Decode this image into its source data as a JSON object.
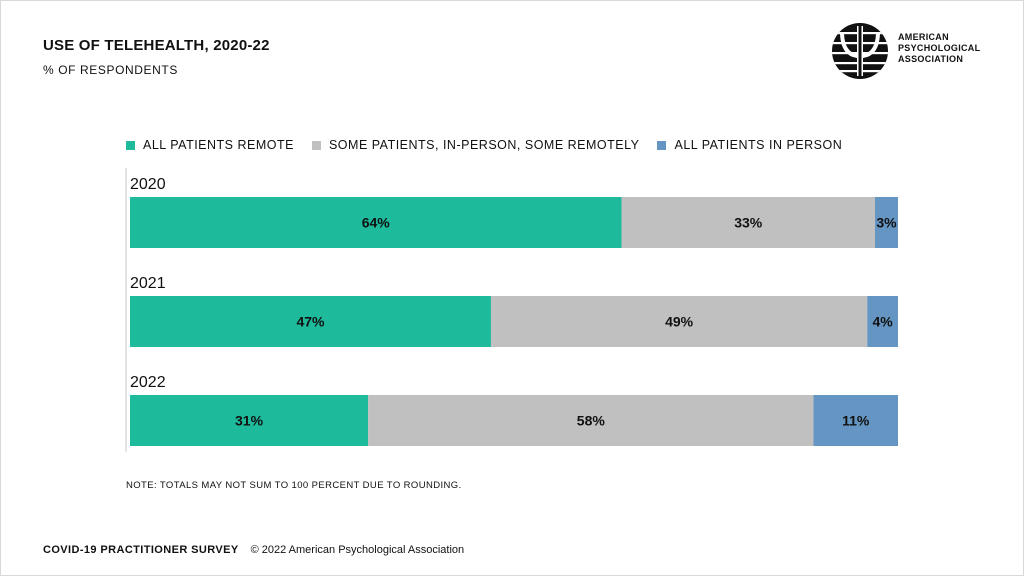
{
  "header": {
    "title": "USE OF TELEHEALTH, 2020-22",
    "subtitle": "% OF RESPONDENTS"
  },
  "logo": {
    "icon": "apa-psi-logo-icon",
    "lines": [
      "AMERICAN",
      "PSYCHOLOGICAL",
      "ASSOCIATION"
    ]
  },
  "chart_data": {
    "type": "bar",
    "orientation": "horizontal",
    "stacked": true,
    "title": "USE OF TELEHEALTH, 2020-22",
    "subtitle": "% OF RESPONDENTS",
    "categories": [
      "2020",
      "2021",
      "2022"
    ],
    "series": [
      {
        "name": "ALL PATIENTS REMOTE",
        "color": "#1dba9b",
        "values": [
          64,
          47,
          31
        ],
        "labels": [
          "64%",
          "47%",
          "31%"
        ]
      },
      {
        "name": "SOME PATIENTS, IN-PERSON, SOME REMOTELY",
        "color": "#c0c0c0",
        "values": [
          33,
          49,
          58
        ],
        "labels": [
          "33%",
          "49%",
          "58%"
        ]
      },
      {
        "name": "ALL PATIENTS IN PERSON",
        "color": "#6595c3",
        "values": [
          3,
          4,
          11
        ],
        "labels": [
          "3%",
          "4%",
          "11%"
        ]
      }
    ],
    "xlim": [
      0,
      100
    ],
    "legend_position": "top",
    "grid": false
  },
  "note": "NOTE: TOTALS MAY NOT SUM TO 100 PERCENT DUE TO ROUNDING.",
  "footer": {
    "survey": "COVID-19 PRACTITIONER SURVEY",
    "copyright": "© 2022 American Psychological Association"
  }
}
